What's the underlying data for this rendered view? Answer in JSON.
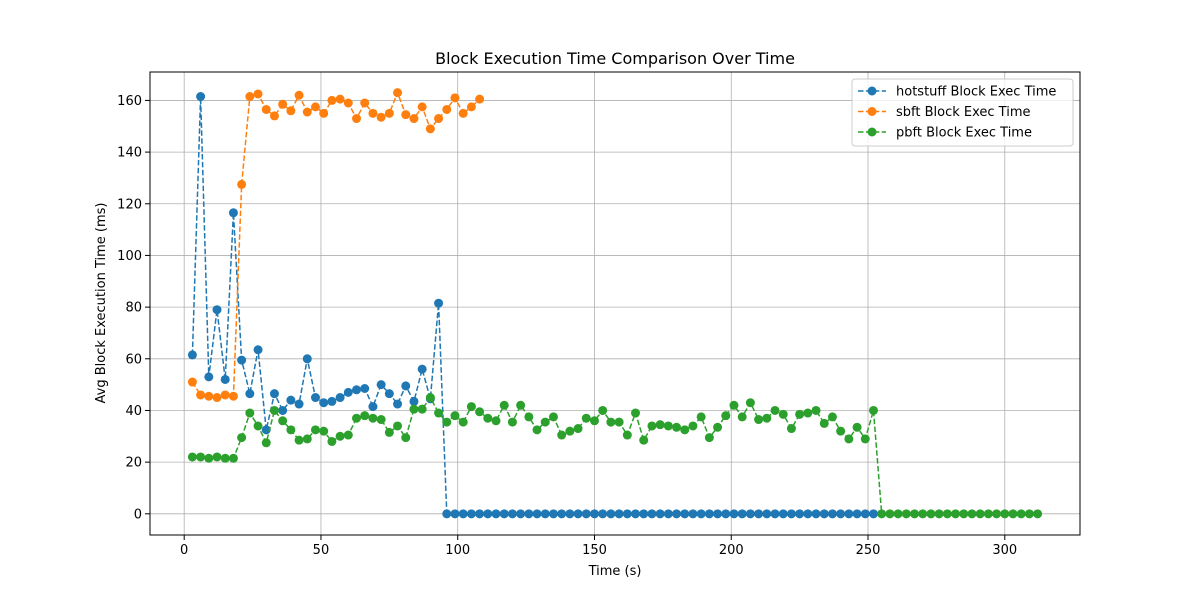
{
  "chart_data": {
    "type": "line",
    "title": "Block Execution Time Comparison Over Time",
    "xlabel": "Time (s)",
    "ylabel": "Avg Block Execution Time (ms)",
    "xlim": [
      -12.5,
      327.5
    ],
    "ylim": [
      -8.2,
      171.0
    ],
    "xticks": [
      0,
      50,
      100,
      150,
      200,
      250,
      300
    ],
    "yticks": [
      0,
      20,
      40,
      60,
      80,
      100,
      120,
      140,
      160
    ],
    "grid": true,
    "legend_position": "top-right",
    "series": [
      {
        "name": "hotstuff Block Exec Time",
        "color": "#1f77b4",
        "x": [
          3,
          6,
          9,
          12,
          15,
          18,
          21,
          24,
          27,
          30,
          33,
          36,
          39,
          42,
          45,
          48,
          51,
          54,
          57,
          60,
          63,
          66,
          69,
          72,
          75,
          78,
          81,
          84,
          87,
          90,
          93,
          96,
          99,
          102,
          105,
          108,
          111,
          114,
          117,
          120,
          123,
          126,
          129,
          132,
          135,
          138,
          141,
          144,
          147,
          150,
          153,
          156,
          159,
          162,
          165,
          168,
          171,
          174,
          177,
          180,
          183,
          186,
          189,
          192,
          195,
          198,
          201,
          204,
          207,
          210,
          213,
          216,
          219,
          222,
          225,
          228,
          231,
          234,
          237,
          240,
          243,
          246,
          249,
          252
        ],
        "y": [
          61.5,
          161.5,
          53.0,
          79.0,
          52.0,
          116.5,
          59.5,
          46.5,
          63.5,
          32.5,
          46.5,
          40.0,
          44.0,
          42.5,
          60.0,
          45.0,
          43.0,
          43.5,
          45.0,
          47.0,
          48.0,
          48.5,
          41.5,
          50.0,
          46.5,
          42.5,
          49.5,
          43.5,
          56.0,
          44.5,
          81.5,
          0,
          0,
          0,
          0,
          0,
          0,
          0,
          0,
          0,
          0,
          0,
          0,
          0,
          0,
          0,
          0,
          0,
          0,
          0,
          0,
          0,
          0,
          0,
          0,
          0,
          0,
          0,
          0,
          0,
          0,
          0,
          0,
          0,
          0,
          0,
          0,
          0,
          0,
          0,
          0,
          0,
          0,
          0,
          0,
          0,
          0,
          0,
          0,
          0,
          0,
          0,
          0,
          0
        ]
      },
      {
        "name": "sbft Block Exec Time",
        "color": "#ff7f0e",
        "x": [
          3,
          6,
          9,
          12,
          15,
          18,
          21,
          24,
          27,
          30,
          33,
          36,
          39,
          42,
          45,
          48,
          51,
          54,
          57,
          60,
          63,
          66,
          69,
          72,
          75,
          78,
          81,
          84,
          87,
          90,
          93,
          96,
          99,
          102,
          105,
          108
        ],
        "y": [
          51.0,
          46.0,
          45.5,
          45.0,
          46.0,
          45.5,
          127.5,
          161.5,
          162.5,
          156.5,
          154.0,
          158.5,
          156.0,
          162.0,
          155.5,
          157.5,
          155.0,
          160.0,
          160.5,
          159.0,
          153.0,
          159.0,
          155.0,
          153.5,
          155.0,
          163.0,
          154.5,
          153.0,
          157.5,
          149.0,
          153.0,
          156.5,
          161.0,
          155.0,
          157.5,
          160.5
        ]
      },
      {
        "name": "pbft Block Exec Time",
        "color": "#2ca02c",
        "x": [
          3,
          6,
          9,
          12,
          15,
          18,
          21,
          24,
          27,
          30,
          33,
          36,
          39,
          42,
          45,
          48,
          51,
          54,
          57,
          60,
          63,
          66,
          69,
          72,
          75,
          78,
          81,
          84,
          87,
          90,
          93,
          96,
          99,
          102,
          105,
          108,
          111,
          114,
          117,
          120,
          123,
          126,
          129,
          132,
          135,
          138,
          141,
          144,
          147,
          150,
          153,
          156,
          159,
          162,
          165,
          168,
          171,
          174,
          177,
          180,
          183,
          186,
          189,
          192,
          195,
          198,
          201,
          204,
          207,
          210,
          213,
          216,
          219,
          222,
          225,
          228,
          231,
          234,
          237,
          240,
          243,
          246,
          249,
          252,
          255,
          258,
          261,
          264,
          267,
          270,
          273,
          276,
          279,
          282,
          285,
          288,
          291,
          294,
          297,
          300,
          303,
          306,
          309,
          312
        ],
        "y": [
          22.0,
          22.0,
          21.5,
          22.0,
          21.5,
          21.5,
          29.5,
          39.0,
          34.0,
          27.5,
          40.0,
          36.0,
          32.5,
          28.5,
          29.0,
          32.5,
          32.0,
          28.0,
          30.0,
          30.5,
          37.0,
          38.0,
          37.0,
          36.5,
          31.5,
          34.0,
          29.5,
          40.5,
          40.5,
          45.0,
          39.0,
          35.5,
          38.0,
          35.5,
          41.5,
          39.5,
          37.0,
          36.0,
          42.0,
          35.5,
          42.0,
          37.5,
          32.5,
          35.5,
          37.5,
          30.5,
          32.0,
          33.0,
          37.0,
          36.0,
          40.0,
          35.5,
          35.5,
          30.5,
          39.0,
          28.5,
          34.0,
          34.5,
          34.0,
          33.5,
          32.5,
          34.0,
          37.5,
          29.5,
          33.5,
          38.0,
          42.0,
          37.5,
          43.0,
          36.5,
          37.0,
          40.0,
          38.5,
          33.0,
          38.5,
          39.0,
          40.0,
          35.0,
          37.5,
          32.0,
          29.0,
          33.5,
          29.0,
          40.0,
          0,
          0,
          0,
          0,
          0,
          0,
          0,
          0,
          0,
          0,
          0,
          0,
          0,
          0,
          0,
          0,
          0,
          0,
          0,
          0
        ]
      }
    ]
  }
}
